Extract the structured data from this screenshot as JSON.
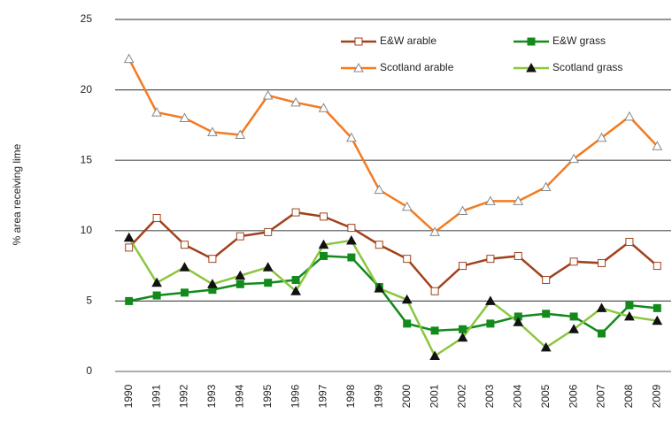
{
  "chart_data": {
    "type": "line",
    "y_label": "% area receiving lime",
    "categories": [
      "1990",
      "1991",
      "1992",
      "1993",
      "1994",
      "1995",
      "1996",
      "1997",
      "1998",
      "1999",
      "2000",
      "2001",
      "2002",
      "2003",
      "2004",
      "2005",
      "2006",
      "2007",
      "2008",
      "2009"
    ],
    "series": [
      {
        "name": "E&W arable",
        "color": "#a0421c",
        "marker": "square",
        "filled": false,
        "values": [
          8.8,
          10.9,
          9.0,
          8.0,
          9.6,
          9.9,
          11.3,
          11.0,
          10.2,
          9.0,
          8.0,
          5.7,
          7.5,
          8.0,
          8.2,
          6.5,
          7.8,
          7.7,
          9.2,
          7.5
        ]
      },
      {
        "name": "E&W grass",
        "color": "#138a1c",
        "marker": "square",
        "filled": true,
        "values": [
          5.0,
          5.4,
          5.6,
          5.8,
          6.2,
          6.3,
          6.5,
          8.2,
          8.1,
          6.0,
          3.4,
          2.9,
          3.0,
          3.4,
          3.9,
          4.1,
          3.9,
          2.7,
          4.7,
          4.5
        ]
      },
      {
        "name": "Scotland arable",
        "color": "#f47a20",
        "marker": "triangle",
        "filled": false,
        "values": [
          22.2,
          18.4,
          18.0,
          17.0,
          16.8,
          19.6,
          19.1,
          18.7,
          16.6,
          12.9,
          11.7,
          9.9,
          11.4,
          12.1,
          12.1,
          13.1,
          15.1,
          16.6,
          18.1,
          16.0
        ]
      },
      {
        "name": "Scotland grass",
        "color": "#8cc63e",
        "marker": "triangle",
        "filled": true,
        "values": [
          9.5,
          6.3,
          7.4,
          6.2,
          6.8,
          7.4,
          5.7,
          9.0,
          9.3,
          5.9,
          5.1,
          1.1,
          2.4,
          5.0,
          3.5,
          1.7,
          3.0,
          4.5,
          3.9,
          3.6
        ]
      }
    ],
    "ylim": [
      0,
      25
    ],
    "yticks": [
      0,
      5,
      10,
      15,
      20,
      25
    ],
    "grid": true,
    "legend": "top-right"
  }
}
